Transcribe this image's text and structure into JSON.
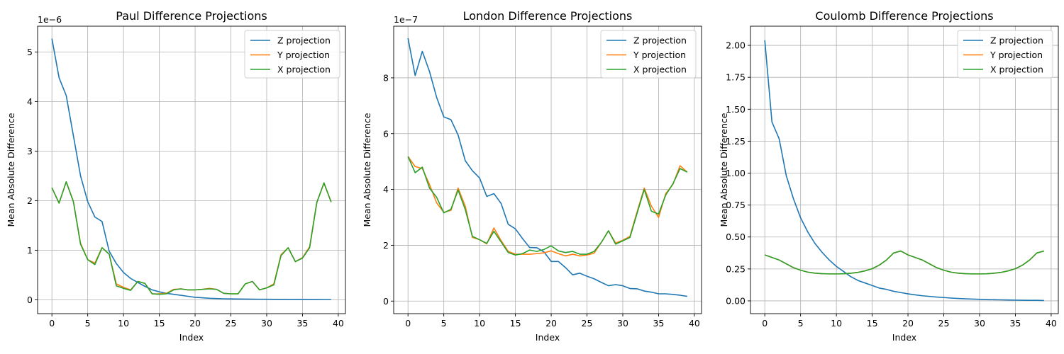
{
  "chart_data": [
    {
      "type": "line",
      "title": "Paul Difference Projections",
      "xlabel": "Index",
      "ylabel": "Mean Absolute Difference",
      "offset_text": "1e−6",
      "scale": 1e-06,
      "xlim": [
        -2,
        41
      ],
      "ylim": [
        -0.28,
        5.52
      ],
      "xticks": [
        0,
        5,
        10,
        15,
        20,
        25,
        30,
        35,
        40
      ],
      "yticks": [
        0,
        1,
        2,
        3,
        4,
        5
      ],
      "grid": true,
      "legend_position": "upper-right",
      "series": [
        {
          "name": "Z projection",
          "color": "#1f77b4",
          "values": [
            5.27,
            4.48,
            4.12,
            3.31,
            2.5,
            1.98,
            1.67,
            1.58,
            0.98,
            0.73,
            0.55,
            0.43,
            0.35,
            0.27,
            0.2,
            0.16,
            0.13,
            0.11,
            0.09,
            0.07,
            0.05,
            0.04,
            0.03,
            0.025,
            0.02,
            0.018,
            0.016,
            0.014,
            0.012,
            0.011,
            0.01,
            0.009,
            0.008,
            0.007,
            0.006,
            0.006,
            0.005,
            0.005,
            0.004,
            0.004
          ]
        },
        {
          "name": "Y projection",
          "color": "#ff7f0e",
          "values": [
            2.26,
            1.95,
            2.38,
            1.98,
            1.14,
            0.81,
            0.74,
            1.05,
            0.92,
            0.32,
            0.25,
            0.2,
            0.37,
            0.33,
            0.12,
            0.12,
            0.13,
            0.21,
            0.22,
            0.2,
            0.2,
            0.21,
            0.23,
            0.21,
            0.13,
            0.12,
            0.12,
            0.32,
            0.37,
            0.2,
            0.24,
            0.32,
            0.91,
            1.05,
            0.77,
            0.85,
            1.07,
            1.97,
            2.35,
            1.98
          ]
        },
        {
          "name": "X projection",
          "color": "#2ca02c",
          "values": [
            2.26,
            1.95,
            2.38,
            1.98,
            1.12,
            0.81,
            0.71,
            1.05,
            0.92,
            0.28,
            0.23,
            0.19,
            0.37,
            0.33,
            0.12,
            0.11,
            0.12,
            0.2,
            0.22,
            0.2,
            0.2,
            0.21,
            0.22,
            0.21,
            0.13,
            0.12,
            0.12,
            0.32,
            0.37,
            0.2,
            0.24,
            0.3,
            0.89,
            1.05,
            0.77,
            0.84,
            1.05,
            1.96,
            2.36,
            1.97
          ]
        }
      ]
    },
    {
      "type": "line",
      "title": "London Difference Projections",
      "xlabel": "Index",
      "ylabel": "Mean Absolute Difference",
      "offset_text": "1e−7",
      "scale": 1e-07,
      "xlim": [
        -2,
        41
      ],
      "ylim": [
        -0.45,
        9.85
      ],
      "xticks": [
        0,
        5,
        10,
        15,
        20,
        25,
        30,
        35,
        40
      ],
      "yticks": [
        0,
        2,
        4,
        6,
        8
      ],
      "grid": true,
      "legend_position": "upper-right",
      "series": [
        {
          "name": "Z projection",
          "color": "#1f77b4",
          "values": [
            9.42,
            8.08,
            8.95,
            8.23,
            7.3,
            6.6,
            6.5,
            5.95,
            5.03,
            4.67,
            4.41,
            3.75,
            3.85,
            3.5,
            2.75,
            2.59,
            2.24,
            1.92,
            1.91,
            1.76,
            1.42,
            1.42,
            1.2,
            0.94,
            1.0,
            0.89,
            0.8,
            0.67,
            0.55,
            0.59,
            0.55,
            0.45,
            0.44,
            0.36,
            0.32,
            0.26,
            0.26,
            0.24,
            0.21,
            0.17
          ]
        },
        {
          "name": "Y projection",
          "color": "#ff7f0e",
          "values": [
            5.18,
            4.82,
            4.75,
            4.18,
            3.52,
            3.18,
            3.25,
            4.05,
            3.4,
            2.28,
            2.2,
            2.05,
            2.62,
            2.17,
            1.78,
            1.68,
            1.68,
            1.68,
            1.7,
            1.73,
            1.8,
            1.7,
            1.62,
            1.68,
            1.62,
            1.65,
            1.72,
            2.1,
            2.52,
            2.08,
            2.18,
            2.32,
            3.2,
            4.05,
            3.4,
            3.0,
            3.85,
            4.18,
            4.85,
            4.62
          ]
        },
        {
          "name": "X projection",
          "color": "#2ca02c",
          "values": [
            5.18,
            4.6,
            4.8,
            4.05,
            3.72,
            3.16,
            3.29,
            3.98,
            3.28,
            2.32,
            2.2,
            2.07,
            2.5,
            2.12,
            1.74,
            1.65,
            1.7,
            1.83,
            1.78,
            1.85,
            1.98,
            1.8,
            1.74,
            1.78,
            1.68,
            1.68,
            1.78,
            2.1,
            2.52,
            2.04,
            2.16,
            2.28,
            3.15,
            4.0,
            3.22,
            3.12,
            3.8,
            4.2,
            4.75,
            4.62
          ]
        }
      ]
    },
    {
      "type": "line",
      "title": "Coulomb Difference Projections",
      "xlabel": "Index",
      "ylabel": "Mean Absolute Difference",
      "offset_text": "",
      "scale": 1,
      "xlim": [
        -2,
        41
      ],
      "ylim": [
        -0.1,
        2.15
      ],
      "xticks": [
        0,
        5,
        10,
        15,
        20,
        25,
        30,
        35,
        40
      ],
      "yticks": [
        0.0,
        0.25,
        0.5,
        0.75,
        1.0,
        1.25,
        1.5,
        1.75,
        2.0
      ],
      "ytick_labels": [
        "0.00",
        "0.25",
        "0.50",
        "0.75",
        "1.00",
        "1.25",
        "1.50",
        "1.75",
        "2.00"
      ],
      "grid": true,
      "legend_position": "upper-right",
      "series": [
        {
          "name": "Z projection",
          "color": "#1f77b4",
          "values": [
            2.04,
            1.4,
            1.27,
            0.98,
            0.8,
            0.65,
            0.54,
            0.45,
            0.38,
            0.32,
            0.27,
            0.23,
            0.19,
            0.16,
            0.14,
            0.12,
            0.1,
            0.09,
            0.075,
            0.065,
            0.055,
            0.047,
            0.04,
            0.035,
            0.03,
            0.026,
            0.022,
            0.019,
            0.016,
            0.014,
            0.012,
            0.01,
            0.009,
            0.008,
            0.007,
            0.006,
            0.005,
            0.004,
            0.004,
            0.003
          ]
        },
        {
          "name": "Y projection",
          "color": "#ff7f0e",
          "values": [
            0.36,
            0.34,
            0.32,
            0.29,
            0.26,
            0.24,
            0.225,
            0.217,
            0.213,
            0.211,
            0.211,
            0.212,
            0.216,
            0.223,
            0.235,
            0.252,
            0.28,
            0.32,
            0.375,
            0.39,
            0.36,
            0.34,
            0.32,
            0.29,
            0.26,
            0.24,
            0.225,
            0.217,
            0.213,
            0.211,
            0.211,
            0.212,
            0.216,
            0.223,
            0.235,
            0.252,
            0.28,
            0.32,
            0.375,
            0.39
          ]
        },
        {
          "name": "X projection",
          "color": "#2ca02c",
          "values": [
            0.36,
            0.34,
            0.32,
            0.29,
            0.26,
            0.24,
            0.225,
            0.217,
            0.213,
            0.211,
            0.211,
            0.212,
            0.216,
            0.223,
            0.235,
            0.252,
            0.28,
            0.32,
            0.375,
            0.39,
            0.36,
            0.34,
            0.32,
            0.29,
            0.26,
            0.24,
            0.225,
            0.217,
            0.213,
            0.211,
            0.211,
            0.212,
            0.216,
            0.223,
            0.235,
            0.252,
            0.28,
            0.32,
            0.375,
            0.39
          ]
        }
      ]
    }
  ]
}
